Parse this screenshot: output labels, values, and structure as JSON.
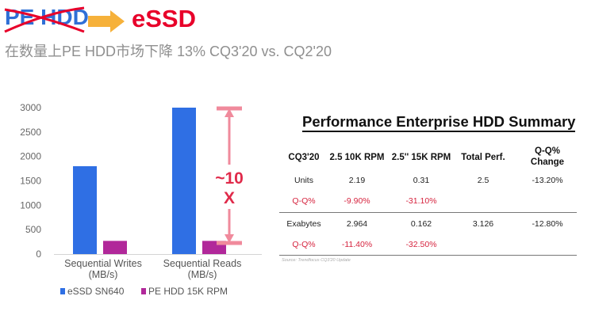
{
  "header": {
    "old_label": "PE HDD",
    "new_label": "eSSD",
    "subtitle": "在数量上PE HDD市场下降 13% CQ3'20 vs. CQ2'20"
  },
  "annotation": {
    "top": "~10",
    "bottom": "X"
  },
  "chart_data": {
    "type": "bar",
    "categories": [
      "Sequential Writes\n(MB/s)",
      "Sequential Reads\n(MB/s)"
    ],
    "series": [
      {
        "name": "eSSD SN640",
        "color": "#2f6fe4",
        "values": [
          1800,
          3000
        ]
      },
      {
        "name": "PE HDD 15K RPM",
        "color": "#b1289a",
        "values": [
          270,
          270
        ]
      }
    ],
    "ylim": [
      0,
      3000
    ],
    "yticks": [
      0,
      500,
      1000,
      1500,
      2000,
      2500,
      3000
    ],
    "grid": false,
    "legend": "bottom-left"
  },
  "table": {
    "title": "Performance Enterprise HDD Summary",
    "headers": [
      "CQ3'20",
      "2.5 10K RPM",
      "2.5'' 15K RPM",
      "Total Perf.",
      "Q-Q% Change"
    ],
    "rows": [
      {
        "label": "Units",
        "values": [
          "2.19",
          "0.31",
          "2.5",
          "-13.20%"
        ]
      },
      {
        "label": "Q-Q%",
        "values": [
          "-9.90%",
          "-31.10%",
          "",
          ""
        ]
      },
      {
        "label": "Exabytes",
        "values": [
          "2.964",
          "0.162",
          "3.126",
          "-12.80%"
        ]
      },
      {
        "label": "Q-Q%",
        "values": [
          "-11.40%",
          "-32.50%",
          "",
          ""
        ]
      }
    ],
    "source": "Source: Trendfocus CQ3'20 Update"
  },
  "colors": {
    "accent_red": "#e8002a",
    "brand_blue": "#2f6fd6",
    "annotation_pink": "#f08a9c",
    "arrow_orange": "#f6b13a"
  }
}
